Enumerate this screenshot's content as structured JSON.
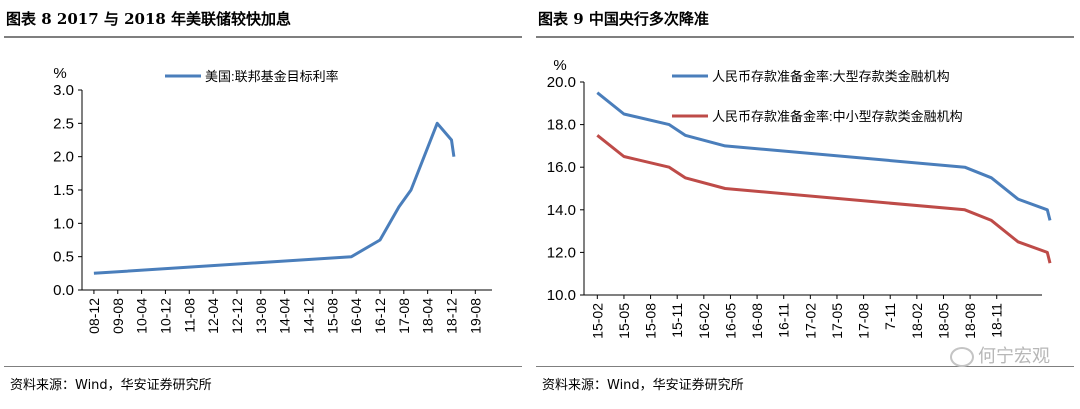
{
  "left": {
    "title": "图表 8 2017 与 2018 年美联储较快加息",
    "source": "资料来源：Wind，华安证券研究所",
    "chart_data": {
      "type": "line",
      "unit": "%",
      "categories": [
        "08-12",
        "09-08",
        "10-04",
        "10-12",
        "11-08",
        "12-04",
        "12-12",
        "13-08",
        "14-04",
        "14-12",
        "15-08",
        "16-04",
        "16-12",
        "17-08",
        "18-04",
        "18-12",
        "19-08"
      ],
      "ylim": [
        0,
        3.0
      ],
      "yticks": [
        "0.0",
        "0.5",
        "1.0",
        "1.5",
        "2.0",
        "2.5",
        "3.0"
      ],
      "yticks_values": [
        0,
        0.5,
        1.0,
        1.5,
        2.0,
        2.5,
        3.0
      ],
      "legend": "top-right",
      "series": [
        {
          "name": "美国:联邦基金目标利率",
          "color": "#4a7ebb",
          "points": [
            [
              0,
              0.25
            ],
            [
              10.8,
              0.5
            ],
            [
              12.0,
              0.75
            ],
            [
              12.8,
              1.25
            ],
            [
              13.3,
              1.5
            ],
            [
              14.4,
              2.5
            ],
            [
              15.0,
              2.25
            ],
            [
              15.1,
              2.0
            ]
          ]
        }
      ]
    }
  },
  "right": {
    "title": "图表 9 中国央行多次降准",
    "source": "资料来源：Wind，华安证券研究所",
    "watermark": "何宁宏观",
    "chart_data": {
      "type": "line",
      "unit": "%",
      "categories": [
        "15-02",
        "15-05",
        "15-08",
        "15-11",
        "16-02",
        "16-05",
        "16-08",
        "16-11",
        "17-02",
        "17-05",
        "17-08",
        "7-11",
        "18-02",
        "18-05",
        "18-08",
        "18-11"
      ],
      "ylim": [
        10.0,
        20.0
      ],
      "yticks": [
        "10.0",
        "12.0",
        "14.0",
        "16.0",
        "18.0",
        "20.0"
      ],
      "yticks_values": [
        10,
        12,
        14,
        16,
        18,
        20
      ],
      "legend": "top",
      "series": [
        {
          "name": "人民币存款准备金率:大型存款类金融机构",
          "color": "#4a7ebb",
          "points": [
            [
              0,
              19.5
            ],
            [
              1,
              18.5
            ],
            [
              2.7,
              18.0
            ],
            [
              3.3,
              17.5
            ],
            [
              4.8,
              17.0
            ],
            [
              13.8,
              16.0
            ],
            [
              14.8,
              15.5
            ],
            [
              15.8,
              14.5
            ],
            [
              16.9,
              14.0
            ],
            [
              17.0,
              13.5
            ]
          ]
        },
        {
          "name": "人民币存款准备金率:中小型存款类金融机构",
          "color": "#be4b48",
          "points": [
            [
              0,
              17.5
            ],
            [
              1,
              16.5
            ],
            [
              2.7,
              16.0
            ],
            [
              3.3,
              15.5
            ],
            [
              4.8,
              15.0
            ],
            [
              13.8,
              14.0
            ],
            [
              14.8,
              13.5
            ],
            [
              15.8,
              12.5
            ],
            [
              16.9,
              12.0
            ],
            [
              17.0,
              11.5
            ]
          ]
        }
      ]
    }
  }
}
